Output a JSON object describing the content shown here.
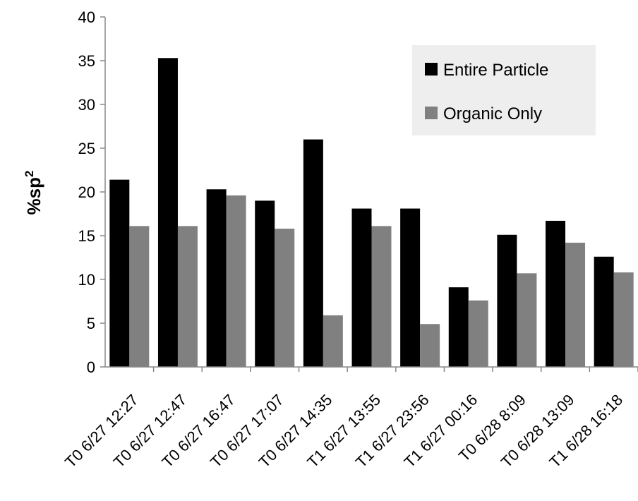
{
  "chart_data": {
    "type": "bar",
    "ylabel": "%sp",
    "ylabel_superscript": "2",
    "ylim": [
      0,
      40
    ],
    "yticks": [
      0,
      5,
      10,
      15,
      20,
      25,
      30,
      35,
      40
    ],
    "grid": false,
    "legend_position": "top-right",
    "categories": [
      "T0 6/27 12:27",
      "T0 6/27 12:47",
      "T0 6/27 16:47",
      "T0 6/27 17:07",
      "T0 6/27 14:35",
      "T1 6/27 13:55",
      "T1 6/27 23:56",
      "T1 6/27 00:16",
      "T0 6/28 8:09",
      "T0 6/28 13:09",
      "T1 6/28 16:18"
    ],
    "series": [
      {
        "name": "Entire Particle",
        "color": "#000000",
        "values": [
          21.4,
          35.3,
          20.3,
          19.0,
          26.0,
          18.1,
          18.1,
          9.1,
          15.1,
          16.7,
          12.6
        ]
      },
      {
        "name": "Organic Only",
        "color": "#808080",
        "values": [
          16.1,
          16.1,
          19.6,
          15.8,
          5.9,
          16.1,
          4.9,
          7.6,
          10.7,
          14.2,
          10.8
        ]
      }
    ]
  }
}
